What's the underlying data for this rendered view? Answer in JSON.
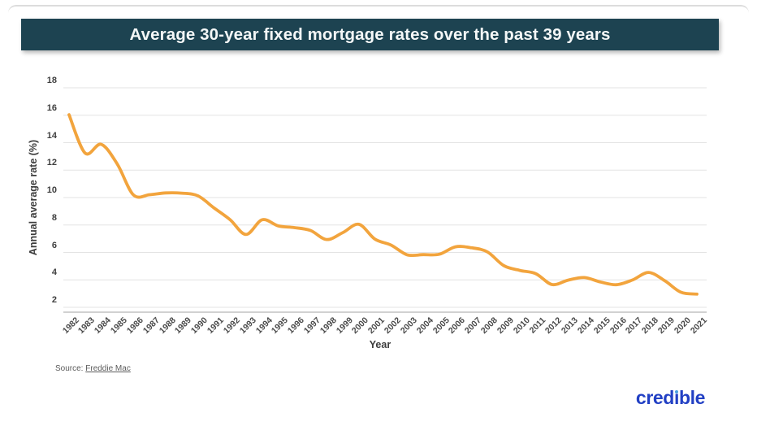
{
  "banner": {
    "title": "Average 30-year fixed mortgage rates over the past 39 years"
  },
  "chart_data": {
    "type": "line",
    "title": "Average 30-year fixed mortgage rates over the past 39 years",
    "xlabel": "Year",
    "ylabel": "Annual average rate (%)",
    "x": [
      1982,
      1983,
      1984,
      1985,
      1986,
      1987,
      1988,
      1989,
      1990,
      1991,
      1992,
      1993,
      1994,
      1995,
      1996,
      1997,
      1998,
      1999,
      2000,
      2001,
      2002,
      2003,
      2004,
      2005,
      2006,
      2007,
      2008,
      2009,
      2010,
      2011,
      2012,
      2013,
      2014,
      2015,
      2016,
      2017,
      2018,
      2019,
      2020,
      2021
    ],
    "series": [
      {
        "name": "Average 30-year fixed mortgage rate (%)",
        "values": [
          16.04,
          13.24,
          13.88,
          12.43,
          10.19,
          10.21,
          10.34,
          10.32,
          10.13,
          9.25,
          8.39,
          7.31,
          8.38,
          7.93,
          7.81,
          7.6,
          6.94,
          7.44,
          8.05,
          6.97,
          6.54,
          5.83,
          5.84,
          5.87,
          6.41,
          6.34,
          6.03,
          5.04,
          4.69,
          4.45,
          3.66,
          3.98,
          4.17,
          3.85,
          3.65,
          3.99,
          4.54,
          3.94,
          3.1,
          2.96
        ]
      }
    ],
    "ylim": [
      2,
      18
    ],
    "yticks": [
      2,
      4,
      6,
      8,
      10,
      12,
      14,
      16,
      18
    ],
    "grid": true,
    "legend": "none",
    "smooth": true
  },
  "footer": {
    "source_prefix": "Source:",
    "source_link_text": "Freddie Mac",
    "logo_text": "credible"
  },
  "colors": {
    "banner_bg": "#1d4351",
    "line_color": "#f2a43d",
    "gridline": "#e3e3e3",
    "axis_line": "#c2c2c2",
    "logo_blue": "#2240c4",
    "logo_dot_blue": "#4aa0e0"
  }
}
